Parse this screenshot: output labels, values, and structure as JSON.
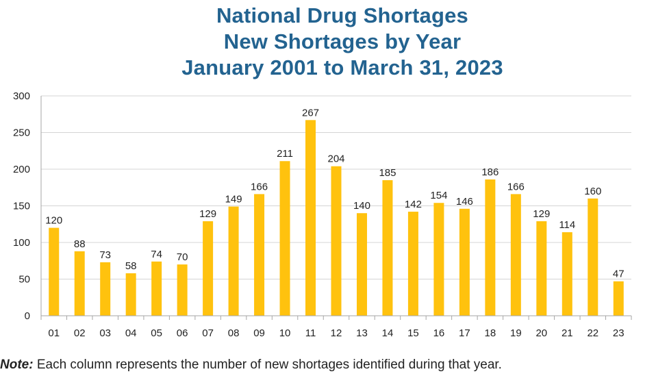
{
  "chart_data": {
    "type": "bar",
    "title": "National Drug Shortages",
    "subtitle_lines": [
      "New Shortages by Year",
      "January 2001 to March 31, 2023"
    ],
    "xlabel": "",
    "ylabel": "",
    "categories": [
      "01",
      "02",
      "03",
      "04",
      "05",
      "06",
      "07",
      "08",
      "09",
      "10",
      "11",
      "12",
      "13",
      "14",
      "15",
      "16",
      "17",
      "18",
      "19",
      "20",
      "21",
      "22",
      "23"
    ],
    "values": [
      120,
      88,
      73,
      58,
      74,
      70,
      129,
      149,
      166,
      211,
      267,
      204,
      140,
      185,
      142,
      154,
      146,
      186,
      166,
      129,
      114,
      160,
      47
    ],
    "ylim": [
      0,
      300
    ],
    "yticks": [
      0,
      50,
      100,
      150,
      200,
      250,
      300
    ],
    "grid": true,
    "legend": "none",
    "data_labels": true,
    "bar_color": "#FFC20E"
  },
  "note": {
    "label": "Note:",
    "text": " Each column represents the number of new shortages identified during that year."
  }
}
